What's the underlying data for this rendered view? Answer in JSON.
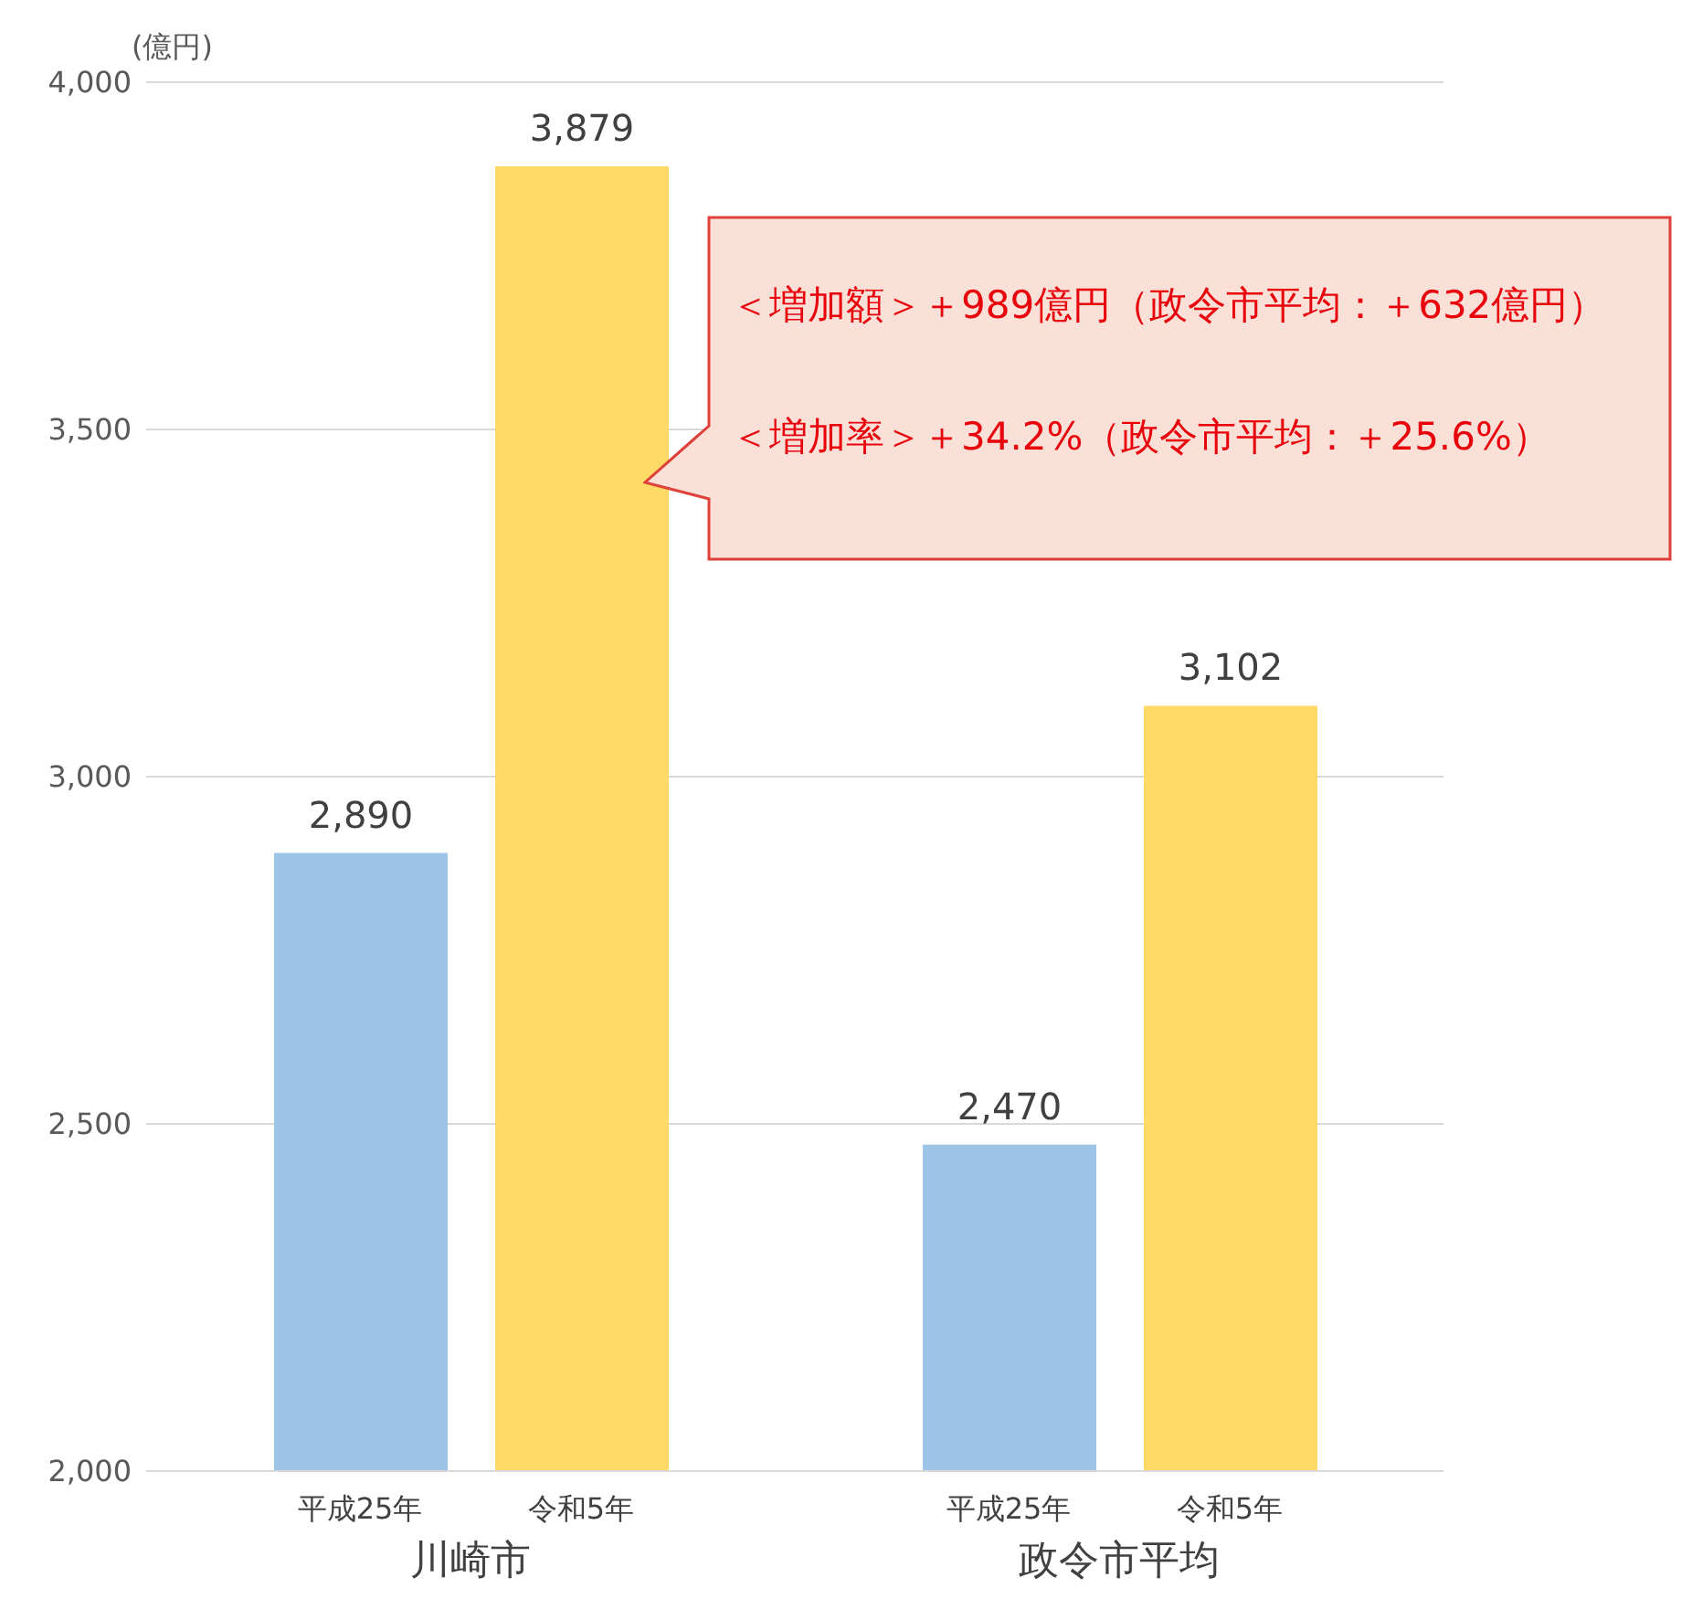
{
  "chart_data": {
    "type": "bar",
    "categories": [
      "川崎市",
      "政令市平均"
    ],
    "series": [
      {
        "name": "平成25年",
        "color": "#9dc3e6",
        "values": [
          2890,
          2470
        ],
        "value_labels": [
          "2,890",
          "2,470"
        ]
      },
      {
        "name": "令和5年",
        "color": "#ffd966",
        "values": [
          3879,
          3102
        ],
        "value_labels": [
          "3,879",
          "3,102"
        ]
      }
    ],
    "ylabel": "(億円)",
    "ylim": [
      2000,
      4000
    ],
    "yticks": [
      {
        "value": 2000,
        "label": "2,000"
      },
      {
        "value": 2500,
        "label": "2,500"
      },
      {
        "value": 3000,
        "label": "3,000"
      },
      {
        "value": 3500,
        "label": "3,500"
      },
      {
        "value": 4000,
        "label": "4,000"
      }
    ],
    "grid": "y",
    "annotations": [
      "＜増加額＞＋989億円（政令市平均：＋632億円）",
      "＜増加率＞＋34.2%（政令市平均：＋25.6%）"
    ]
  }
}
